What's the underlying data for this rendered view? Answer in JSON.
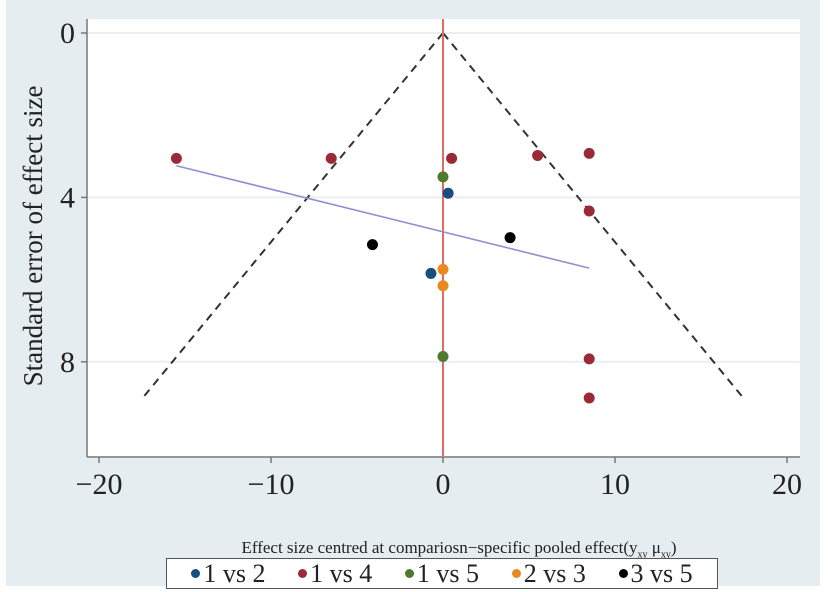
{
  "chart_data": {
    "type": "scatter",
    "title": "",
    "xlabel": "Effect size centred at compariosn−specific pooled effect",
    "xlabel_suffix": {
      "open": "(",
      "y": "y",
      "y_sub": "xy",
      "mu": "μ",
      "mu_sub": "xy",
      "close": ")"
    },
    "ylabel": "Standard error of effect size",
    "xlim": [
      -20.5,
      20.5
    ],
    "ylim": [
      0,
      10
    ],
    "y_reversed": true,
    "x_ticks": [
      -20,
      -10,
      0,
      10,
      20
    ],
    "x_tick_labels": [
      "−20",
      "−10",
      "0",
      "10",
      "20"
    ],
    "y_ticks": [
      0,
      4,
      8
    ],
    "y_tick_labels": [
      "0",
      "4",
      "8"
    ],
    "grid": "horizontal",
    "legend_position": "bottom",
    "series": [
      {
        "name": "1 vs 2",
        "color": "#1b4d7e",
        "points": [
          [
            0.3,
            3.9
          ],
          [
            -0.7,
            5.85
          ]
        ]
      },
      {
        "name": "1 vs 4",
        "color": "#9b2a38",
        "points": [
          [
            -15.5,
            3.05
          ],
          [
            -6.5,
            3.05
          ],
          [
            0.5,
            3.05
          ],
          [
            5.5,
            2.98
          ],
          [
            8.5,
            2.93
          ],
          [
            8.5,
            4.33
          ],
          [
            8.5,
            7.93
          ],
          [
            8.5,
            8.88
          ]
        ]
      },
      {
        "name": "1 vs 5",
        "color": "#4f7a2e",
        "points": [
          [
            0.0,
            3.5
          ],
          [
            0.0,
            7.87
          ]
        ]
      },
      {
        "name": "2 vs 3",
        "color": "#ea8a1e",
        "points": [
          [
            0.0,
            5.75
          ],
          [
            0.0,
            6.15
          ]
        ]
      },
      {
        "name": "3 vs 5",
        "color": "#000000",
        "points": [
          [
            -4.1,
            5.15
          ],
          [
            3.9,
            4.98
          ]
        ]
      }
    ],
    "reference_line": {
      "x": 0,
      "color": "#e06a66"
    },
    "funnel": {
      "apex": [
        0,
        0
      ],
      "left_end": [
        -17.5,
        8.9
      ],
      "right_end": [
        17.5,
        8.9
      ],
      "style": "dashed",
      "color": "#333333"
    },
    "regression_line": {
      "from": [
        -15.5,
        3.23
      ],
      "to": [
        8.5,
        5.72
      ],
      "color": "#9090d0"
    }
  }
}
